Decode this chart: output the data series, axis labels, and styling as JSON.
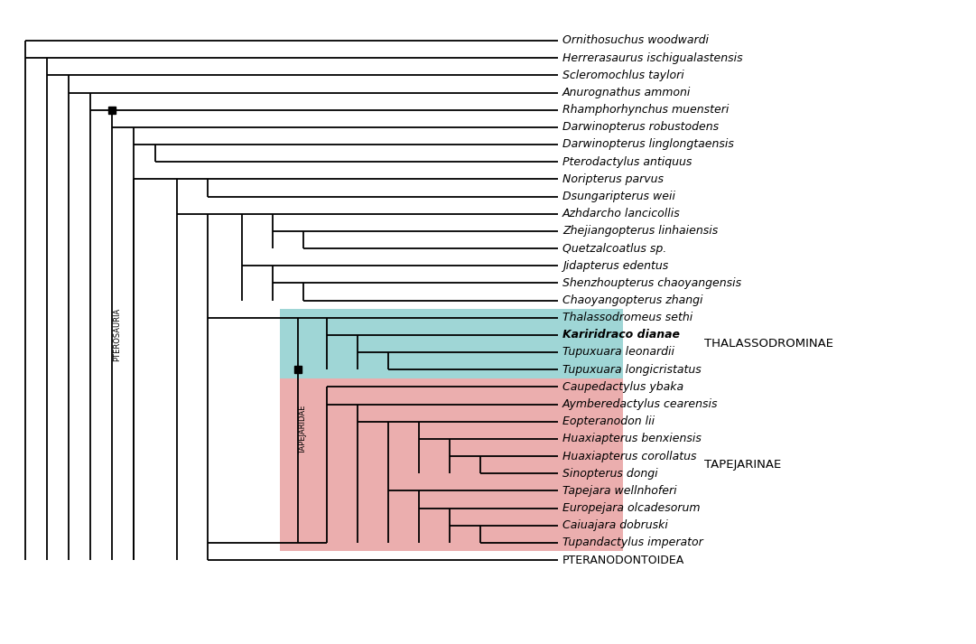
{
  "taxa_order": [
    "Ornithosuchus woodwardi",
    "Herrerasaurus ischigualastensis",
    "Scleromochlus taylori",
    "Anurognathus ammoni",
    "Rhamphorhynchus muensteri",
    "Darwinopterus robustodens",
    "Darwinopterus linglongtaensis",
    "Pterodactylus antiquus",
    "Noripterus parvus",
    "Dsungaripterus weii",
    "Azhdarcho lancicollis",
    "Zhejiangopterus linhaiensis",
    "Quetzalcoatlus sp.",
    "Jidapterus edentus",
    "Shenzhoupterus chaoyangensis",
    "Chaoyangopterus zhangi",
    "Thalassodromeus sethi",
    "Kariridraco dianae",
    "Tupuxuara leonardii",
    "Tupuxuara longicristatus",
    "Caupedactylus ybaka",
    "Aymberedactylus cearensis",
    "Eopteranodon lii",
    "Huaxiapterus benxiensis",
    "Huaxiapterus corollatus",
    "Sinopterus dongi",
    "Tapejara wellnhoferi",
    "Europejara olcadesorum",
    "Caiuajara dobruski",
    "Tupandactylus imperator",
    "PTERANODONTOIDEA"
  ],
  "bold_taxa": [
    "Kariridraco dianae"
  ],
  "non_italic_taxa": [
    "PTERANODONTOIDEA"
  ],
  "thalassodrominae_taxa": [
    "Thalassodromeus sethi",
    "Kariridraco dianae",
    "Tupuxuara leonardii",
    "Tupuxuara longicristatus"
  ],
  "tapejarinae_taxa": [
    "Caupedactylus ybaka",
    "Aymberedactylus cearensis",
    "Eopteranodon lii",
    "Huaxiapterus benxiensis",
    "Huaxiapterus corollatus",
    "Sinopterus dongi",
    "Tapejara wellnhoferi",
    "Europejara olcadesorum",
    "Caiuajara dobruski",
    "Tupandactylus imperator"
  ],
  "thalassodrominae_color": "#8ecfcf",
  "tapejarinae_color": "#e8a0a0",
  "bg_color": "#ffffff",
  "tree_color": "#000000",
  "label_color": "#000000",
  "lw": 1.3,
  "fontsize_taxa": 9.0,
  "fontsize_clade": 9.5,
  "fontsize_rotated": 6.0
}
